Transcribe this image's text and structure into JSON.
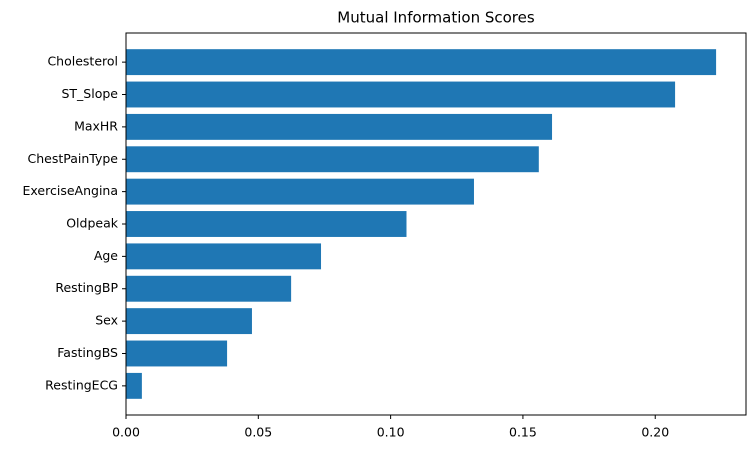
{
  "chart_data": {
    "type": "barh",
    "title": "Mutual Information Scores",
    "categories": [
      "Cholesterol",
      "ST_Slope",
      "MaxHR",
      "ChestPainType",
      "ExerciseAngina",
      "Oldpeak",
      "Age",
      "RestingBP",
      "Sex",
      "FastingBS",
      "RestingECG"
    ],
    "values": [
      0.223,
      0.2075,
      0.161,
      0.156,
      0.1315,
      0.106,
      0.0737,
      0.0624,
      0.0476,
      0.0382,
      0.006
    ],
    "color": "#1f77b4",
    "xlim": [
      0,
      0.2343
    ],
    "xticks": [
      {
        "value": 0,
        "label": "0.00"
      },
      {
        "value": 0.05,
        "label": "0.05"
      },
      {
        "value": 0.1,
        "label": "0.10"
      },
      {
        "value": 0.15,
        "label": "0.15"
      },
      {
        "value": 0.2,
        "label": "0.20"
      }
    ],
    "grid": false
  }
}
